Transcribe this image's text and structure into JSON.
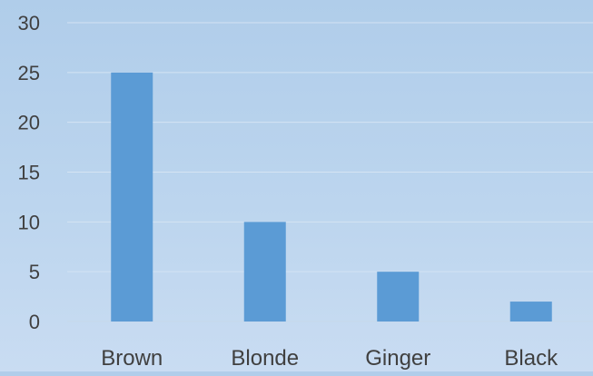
{
  "chart_data": {
    "type": "bar",
    "categories": [
      "Brown",
      "Blonde",
      "Ginger",
      "Black"
    ],
    "values": [
      25,
      10,
      5,
      2
    ],
    "title": "",
    "xlabel": "",
    "ylabel": "",
    "ylim": [
      0,
      30
    ],
    "yticks": [
      "0",
      "5",
      "10",
      "15",
      "20",
      "25",
      "30"
    ],
    "grid": true,
    "legend": "none",
    "colors": {
      "bar": "#5b9bd5",
      "grid": "#d4e3f3",
      "axis": "#c7d8ea",
      "text": "#404040"
    }
  }
}
